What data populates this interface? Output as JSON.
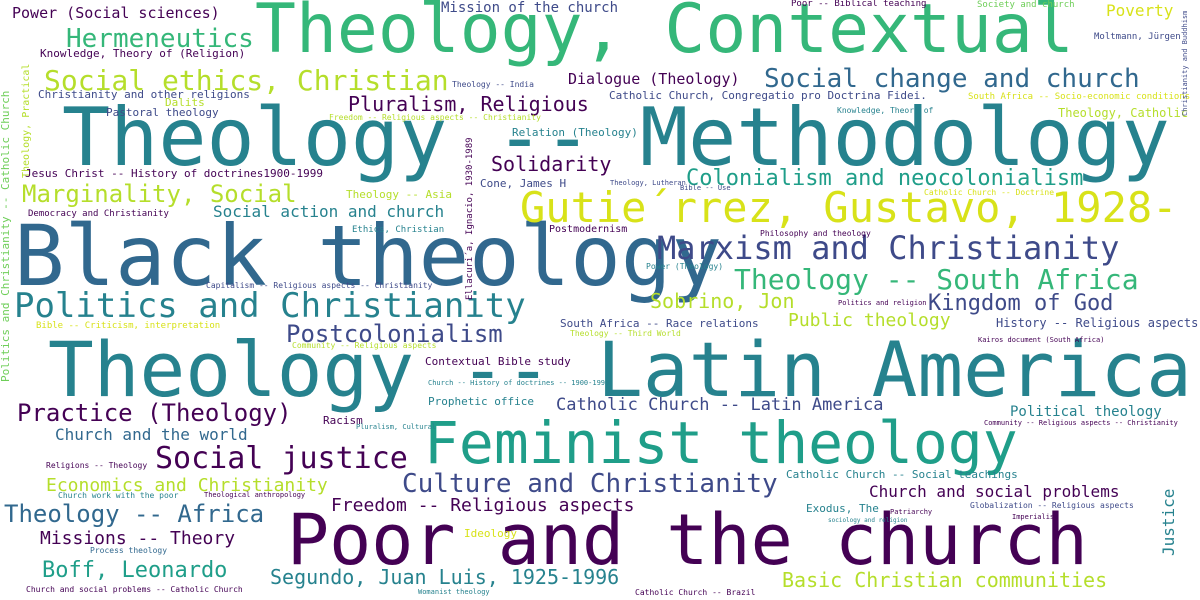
{
  "palette": {
    "c1": "#440154",
    "c2": "#3e4a89",
    "c3": "#31688e",
    "c4": "#26828e",
    "c5": "#1f9e89",
    "c6": "#35b779",
    "c7": "#6ece58",
    "c8": "#b5de2b",
    "c9": "#d8e219"
  },
  "words": [
    {
      "text": "Theology, Contextual",
      "color": "#35b779"
    },
    {
      "text": "Theology -- Methodology",
      "color": "#26828e"
    },
    {
      "text": "Black theology",
      "color": "#31688e"
    },
    {
      "text": "Theology -- Latin America",
      "color": "#26828e"
    },
    {
      "text": "Feminist theology",
      "color": "#1f9e89"
    },
    {
      "text": "Poor and the church",
      "color": "#440154"
    },
    {
      "text": "Gutie´rrez, Gustavo, 1928-",
      "color": "#d8e219"
    },
    {
      "text": "Marxism and Christianity",
      "color": "#3e4a89"
    },
    {
      "text": "Politics and Christianity",
      "color": "#26828e"
    },
    {
      "text": "Social change and church",
      "color": "#31688e"
    },
    {
      "text": "Theology -- South Africa",
      "color": "#35b779"
    },
    {
      "text": "Social ethics, Christian",
      "color": "#b5de2b"
    },
    {
      "text": "Colonialism and neocolonialism",
      "color": "#1f9e89"
    },
    {
      "text": "Social justice",
      "color": "#440154"
    },
    {
      "text": "Culture and Christianity",
      "color": "#3e4a89"
    },
    {
      "text": "Marginality, Social",
      "color": "#b5de2b"
    },
    {
      "text": "Hermeneutics",
      "color": "#35b779"
    },
    {
      "text": "Practice (Theology)",
      "color": "#440154"
    },
    {
      "text": "Postcolonialism",
      "color": "#3e4a89"
    },
    {
      "text": "Pluralism, Religious",
      "color": "#440154"
    },
    {
      "text": "Theology -- Africa",
      "color": "#31688e"
    },
    {
      "text": "Boff, Leonardo",
      "color": "#1f9e89"
    },
    {
      "text": "Segundo, Juan Luis, 1925-1996",
      "color": "#26828e"
    },
    {
      "text": "Basic Christian communities",
      "color": "#b5de2b"
    },
    {
      "text": "Sobrino, Jon",
      "color": "#b5de2b"
    },
    {
      "text": "Kingdom of God",
      "color": "#3e4a89"
    },
    {
      "text": "Public theology",
      "color": "#b5de2b"
    },
    {
      "text": "Solidarity",
      "color": "#440154"
    },
    {
      "text": "Economics and Christianity",
      "color": "#b5de2b"
    },
    {
      "text": "Freedom -- Religious aspects",
      "color": "#440154"
    },
    {
      "text": "Catholic Church -- Latin America",
      "color": "#3e4a89"
    },
    {
      "text": "Church and social problems",
      "color": "#440154"
    },
    {
      "text": "Missions -- Theory",
      "color": "#440154"
    },
    {
      "text": "Church and the world",
      "color": "#31688e"
    },
    {
      "text": "Social action and church",
      "color": "#26828e"
    },
    {
      "text": "Power (Social sciences)",
      "color": "#440154"
    },
    {
      "text": "Mission of the church",
      "color": "#3e4a89"
    },
    {
      "text": "Dialogue (Theology)",
      "color": "#440154"
    },
    {
      "text": "Poverty",
      "color": "#d8e219"
    },
    {
      "text": "Political theology",
      "color": "#26828e"
    },
    {
      "text": "Justice",
      "color": "#26828e"
    },
    {
      "text": "History -- Religious aspects",
      "color": "#3e4a89"
    },
    {
      "text": "South Africa -- Race relations",
      "color": "#3e4a89"
    },
    {
      "text": "Theology, Catholic",
      "color": "#b5de2b"
    },
    {
      "text": "Catholic Church -- Social teachings",
      "color": "#26828e"
    },
    {
      "text": "Exodus, The",
      "color": "#26828e"
    },
    {
      "text": "Jesus Christ -- History of doctrines1900-1999",
      "color": "#440154"
    },
    {
      "text": "Knowledge, Theory of (Religion)",
      "color": "#440154"
    },
    {
      "text": "Christianity and other religions",
      "color": "#3e4a89"
    },
    {
      "text": "Catholic Church, Congregatio pro Doctrina Fidei.",
      "color": "#3e4a89"
    },
    {
      "text": "Pastoral theology",
      "color": "#3e4a89"
    },
    {
      "text": "Dalits",
      "color": "#b5de2b"
    },
    {
      "text": "Relation (Theology)",
      "color": "#26828e"
    },
    {
      "text": "Cone, James H",
      "color": "#3e4a89"
    },
    {
      "text": "Theology -- Asia",
      "color": "#b5de2b"
    },
    {
      "text": "Democracy and Christianity",
      "color": "#440154"
    },
    {
      "text": "Prophetic office",
      "color": "#26828e"
    },
    {
      "text": "Contextual Bible study",
      "color": "#440154"
    },
    {
      "text": "Ideology",
      "color": "#d8e219"
    },
    {
      "text": "Racism",
      "color": "#440154"
    },
    {
      "text": "Postmodernism",
      "color": "#440154"
    },
    {
      "text": "Ethics, Christian",
      "color": "#26828e"
    },
    {
      "text": "Moltmann, Jürgen",
      "color": "#3e4a89"
    },
    {
      "text": "Society and church",
      "color": "#6ece58"
    },
    {
      "text": "Poor -- Biblical teaching",
      "color": "#440154"
    },
    {
      "text": "South Africa -- Socio-economic conditions",
      "color": "#d8e219"
    },
    {
      "text": "Knowledge, Theory of",
      "color": "#26828e"
    },
    {
      "text": "Freedom -- Religious aspects -- Christianity",
      "color": "#b5de2b"
    },
    {
      "text": "Theology -- India",
      "color": "#3e4a89"
    },
    {
      "text": "Philosophy and theology",
      "color": "#440154"
    },
    {
      "text": "Power (Theology)",
      "color": "#26828e"
    },
    {
      "text": "Capitalism -- Religious aspects -- Christianity",
      "color": "#3e4a89"
    },
    {
      "text": "Bible -- Criticism, interpretation",
      "color": "#d8e219"
    },
    {
      "text": "Community -- Religious aspects",
      "color": "#b5de2b"
    },
    {
      "text": "Theology -- Third World",
      "color": "#b5de2b"
    },
    {
      "text": "Church -- History of doctrines -- 1900-1999",
      "color": "#26828e"
    },
    {
      "text": "Catholic Church -- Doctrine",
      "color": "#d8e219"
    },
    {
      "text": "Theology, Lutheran",
      "color": "#3e4a89"
    },
    {
      "text": "Bible -- Use",
      "color": "#3e4a89"
    },
    {
      "text": "Politics and religion",
      "color": "#440154"
    },
    {
      "text": "Kairos document (South Africa)",
      "color": "#440154"
    },
    {
      "text": "Community -- Religious aspects -- Christianity",
      "color": "#440154"
    },
    {
      "text": "Pluralism, Cultural",
      "color": "#26828e"
    },
    {
      "text": "Religions -- Theology",
      "color": "#440154"
    },
    {
      "text": "Church work with the poor",
      "color": "#26828e"
    },
    {
      "text": "Theological anthropology",
      "color": "#440154"
    },
    {
      "text": "Process theology",
      "color": "#31688e"
    },
    {
      "text": "Church and social problems -- Catholic Church",
      "color": "#440154"
    },
    {
      "text": "Womanist theology",
      "color": "#26828e"
    },
    {
      "text": "Catholic Church -- Brazil",
      "color": "#440154"
    },
    {
      "text": "Globalization -- Religious aspects",
      "color": "#3e4a89"
    },
    {
      "text": "Patriarchy",
      "color": "#440154"
    },
    {
      "text": "Imperialism",
      "color": "#440154"
    },
    {
      "text": "sociology and religion",
      "color": "#26828e"
    },
    {
      "text": "Theology, Practical",
      "color": "#b5de2b"
    },
    {
      "text": "Politics and Christianity -- Catholic Church",
      "color": "#6ece58"
    },
    {
      "text": "Ellacuri´a, Ignacio, 1930-1989",
      "color": "#440154"
    },
    {
      "text": "Christianity and Buddhism",
      "color": "#3e4a89"
    }
  ]
}
